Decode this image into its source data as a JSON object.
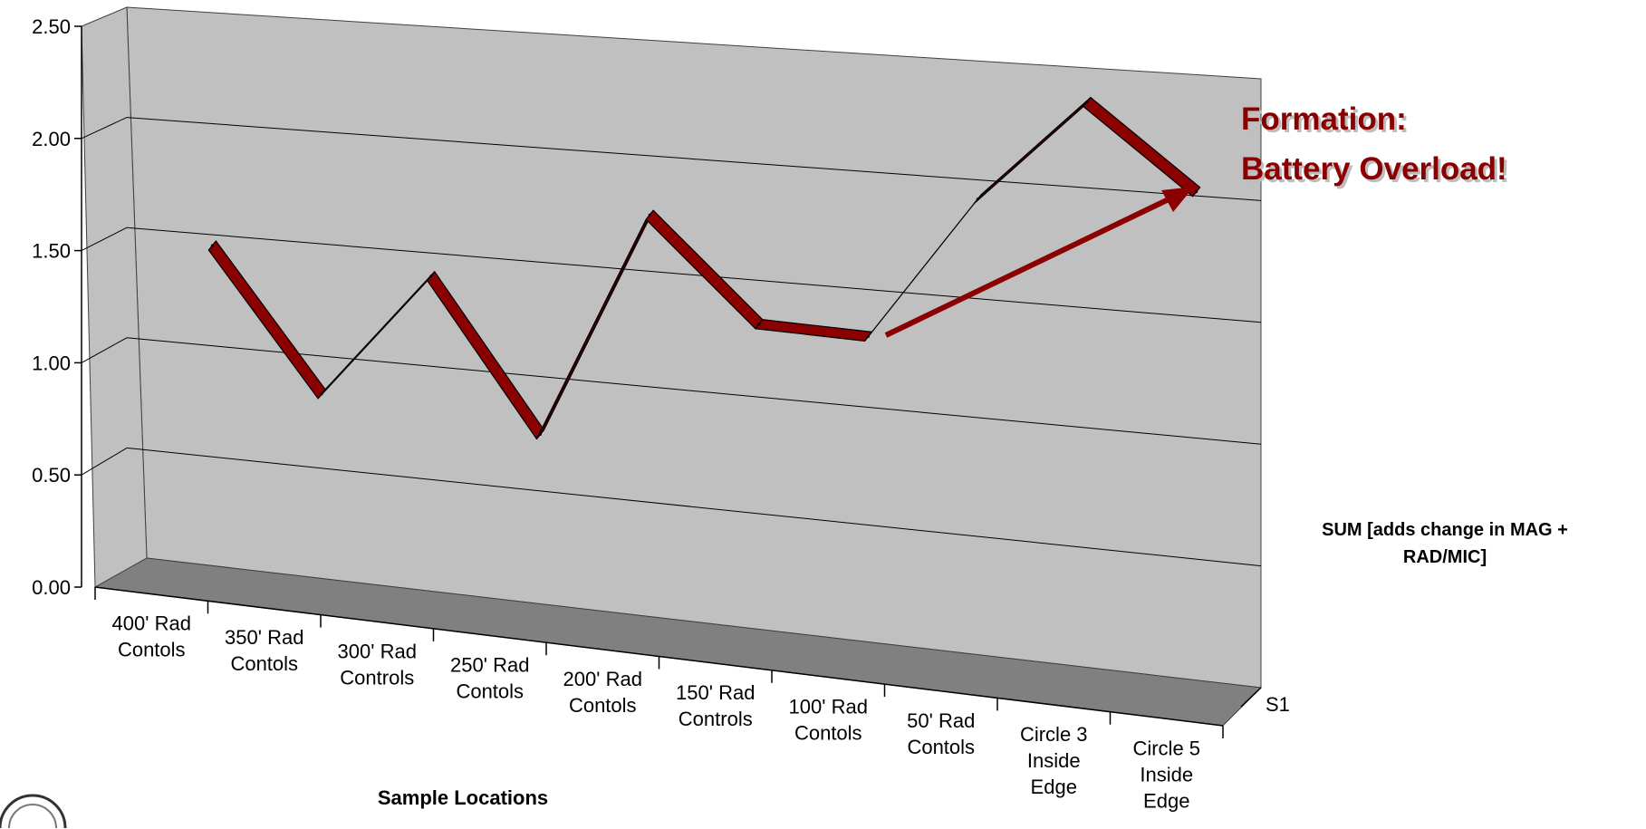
{
  "chart_data": {
    "type": "line",
    "title": "",
    "xlabel": "Sample Locations",
    "ylabel": "",
    "ylim": [
      0,
      2.5
    ],
    "yticks": [
      "0.00",
      "0.50",
      "1.00",
      "1.50",
      "2.00",
      "2.50"
    ],
    "categories": [
      [
        "400' Rad",
        "Contols"
      ],
      [
        "350' Rad",
        "Contols"
      ],
      [
        "300' Rad",
        "Controls"
      ],
      [
        "250' Rad",
        "Contols"
      ],
      [
        "200' Rad",
        "Contols"
      ],
      [
        "150' Rad",
        "Controls"
      ],
      [
        "100' Rad",
        "Contols"
      ],
      [
        "50' Rad",
        "Contols"
      ],
      [
        "Circle 3",
        "Inside",
        "Edge"
      ],
      [
        "Circle 5",
        "Inside",
        "Edge"
      ]
    ],
    "series": [
      {
        "name": "S1",
        "values": [
          1.42,
          0.8,
          1.37,
          0.72,
          1.72,
          1.29,
          1.28,
          1.9,
          2.34,
          2.0
        ],
        "color": "#8b0000"
      }
    ],
    "depth_axis_label": "S1",
    "legend_text": "SUM [adds change in MAG + RAD/MIC]",
    "legend_placement": "right",
    "grid": true,
    "annotation": {
      "lines": [
        "Formation:",
        "Battery Overload!"
      ],
      "color": "#8a0000"
    },
    "colors": {
      "wall": "#c0c0c0",
      "floor": "#808080",
      "line": "#8b0000",
      "line_dark": "#3d0000",
      "arrow": "#8b0000"
    }
  }
}
